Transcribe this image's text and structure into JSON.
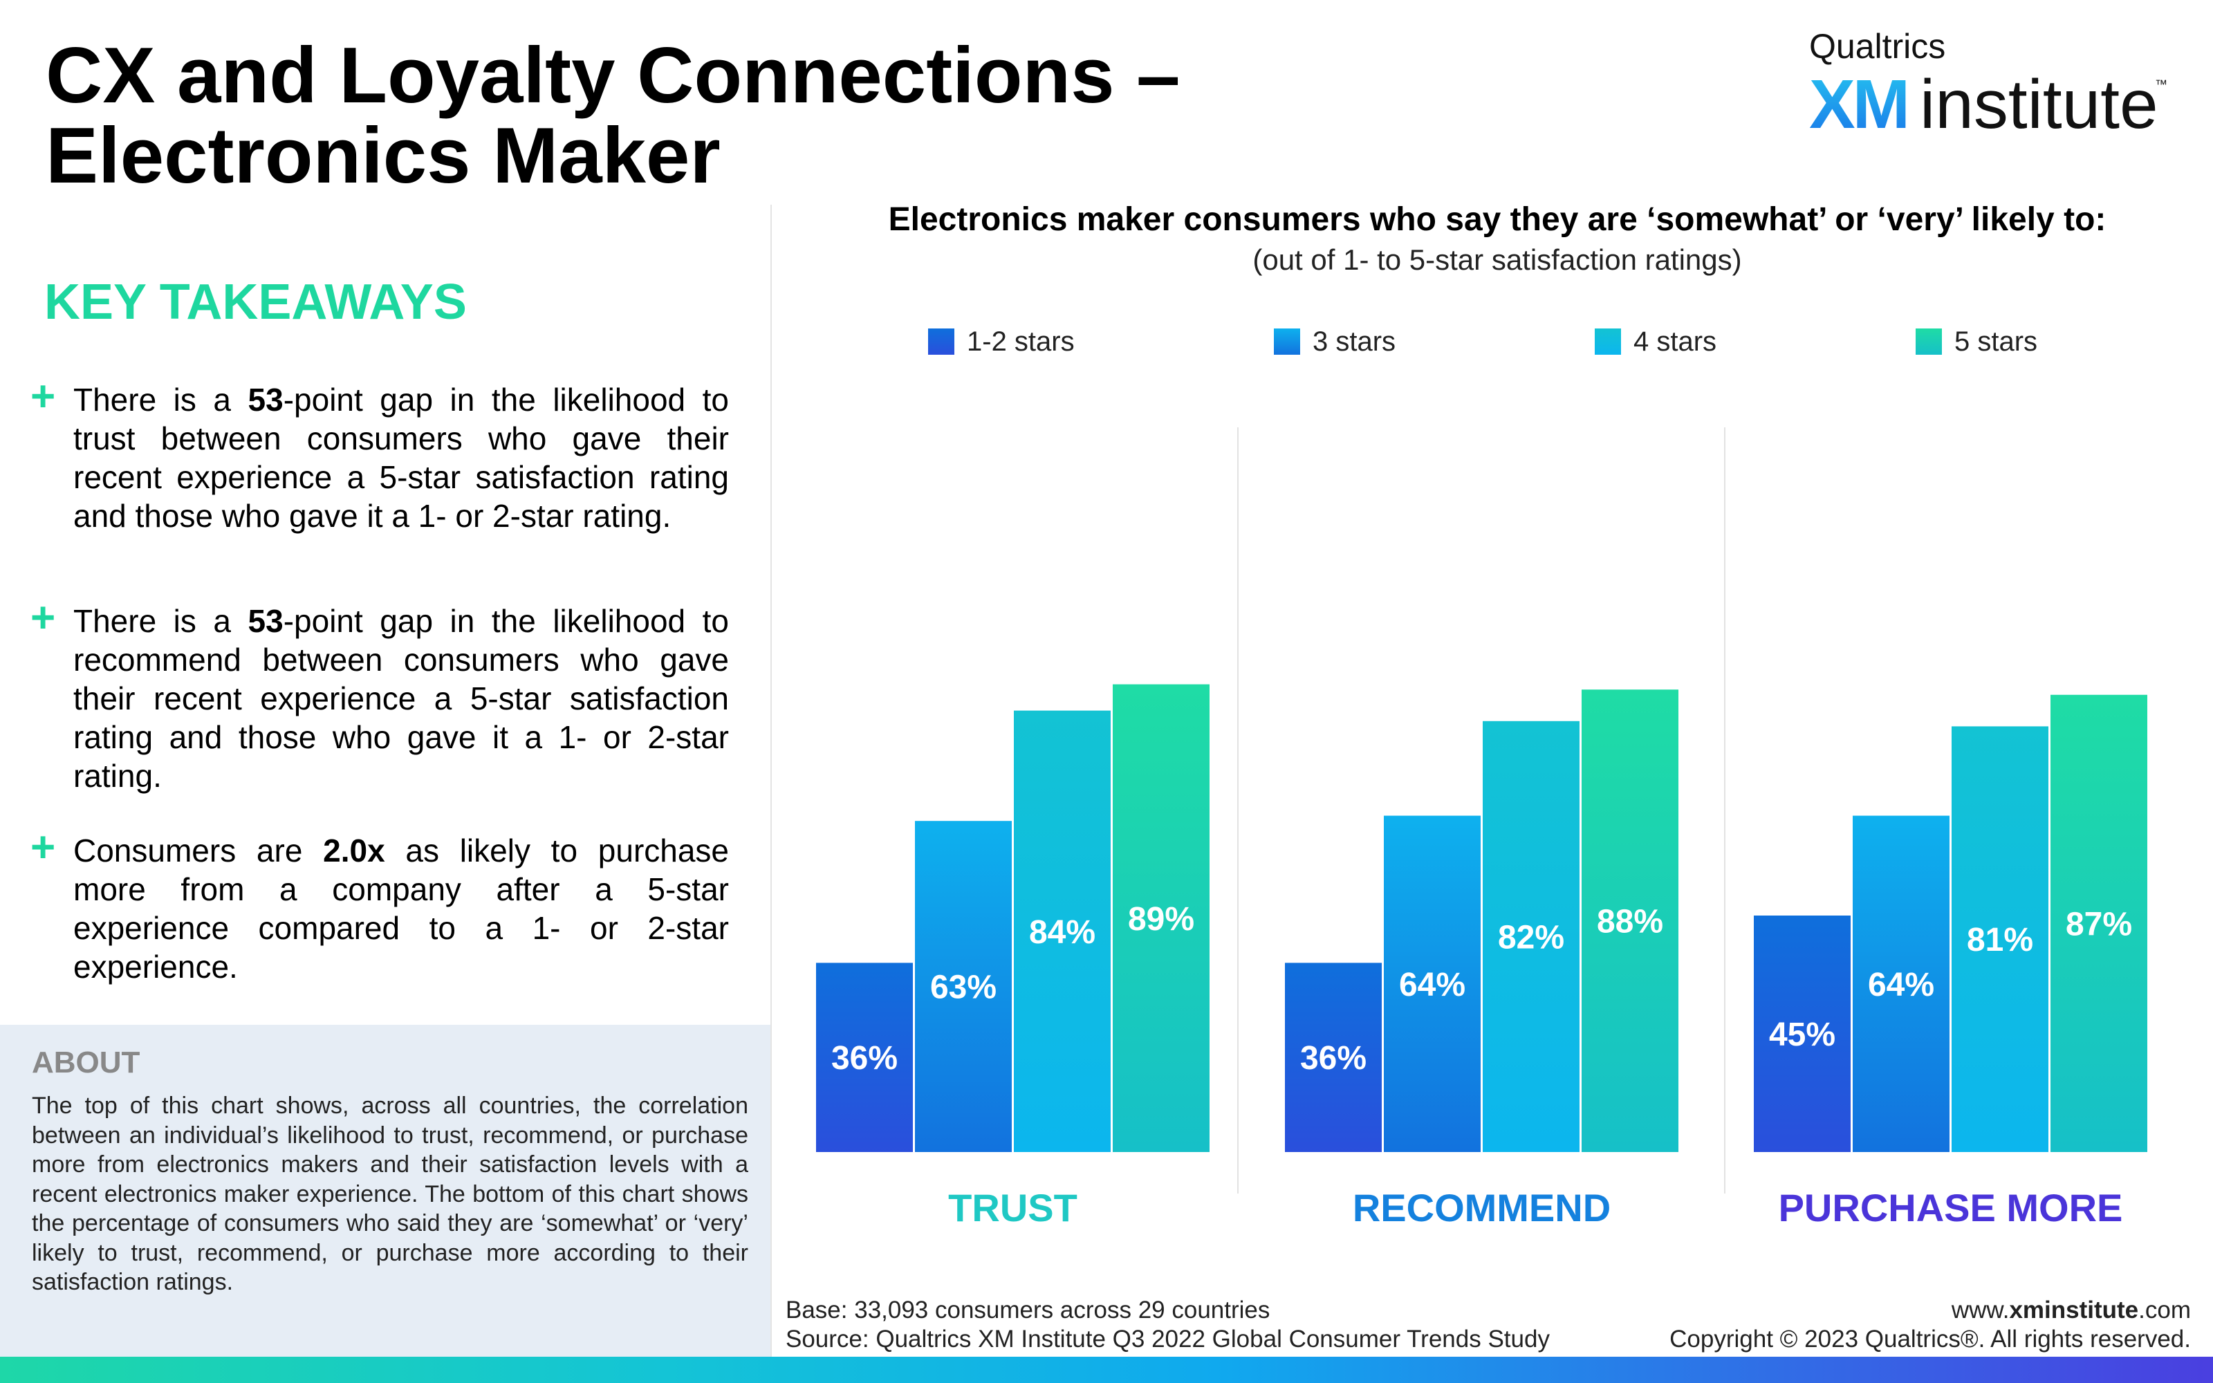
{
  "page": {
    "title_line1": "CX and Loyalty Connections –",
    "title_line2": "Electronics Maker"
  },
  "logo": {
    "brand": "Qualtrics",
    "xm": "XM",
    "institute": "institute",
    "tm": "™"
  },
  "takeaways": {
    "heading": "KEY TAKEAWAYS",
    "items": [
      {
        "pre": "There is a ",
        "bold": "53",
        "post": "-point gap in the likelihood to trust between consumers who gave their recent experience a 5-star satisfaction rating and those who gave it a 1- or 2-star rating."
      },
      {
        "pre": "There is a ",
        "bold": "53",
        "post": "-point gap in the likelihood to recommend between consumers who gave their recent experience a 5-star satisfaction rating and those who gave it a 1- or 2-star rating."
      },
      {
        "pre": "Consumers are ",
        "bold": "2.0x",
        "post": " as likely to purchase more from a company after a 5-star experience compared to a 1- or 2-star experience."
      }
    ]
  },
  "about": {
    "title": "ABOUT",
    "text": "The top of this chart shows, across all countries, the correlation between an individual’s likelihood to trust, recommend, or purchase more from electronics makers and their satisfaction levels with a recent electronics maker experience. The bottom of this chart shows the percentage of consumers who said they are ‘somewhat’ or ‘very’ likely to trust, recommend, or purchase more according to their satisfaction ratings."
  },
  "chart_data": {
    "type": "bar",
    "title": "Electronics maker consumers who say they are ‘somewhat’ or ‘very’ likely to:",
    "subtitle": "(out of 1- to 5-star satisfaction ratings)",
    "categories": [
      "TRUST",
      "RECOMMEND",
      "PURCHASE MORE"
    ],
    "category_colors": [
      "#1fc8c4",
      "#1481de",
      "#4a34d9"
    ],
    "series": [
      {
        "name": "1-2 stars",
        "values": [
          36,
          36,
          45
        ],
        "color_top": "#0f6fdc",
        "color_bottom": "#2a4fdc"
      },
      {
        "name": "3 stars",
        "values": [
          63,
          64,
          64
        ],
        "color_top": "#0eb1ee",
        "color_bottom": "#1272de"
      },
      {
        "name": "4 stars",
        "values": [
          84,
          82,
          81
        ],
        "color_top": "#13c3d3",
        "color_bottom": "#0cb6ee"
      },
      {
        "name": "5 stars",
        "values": [
          89,
          88,
          87
        ],
        "color_top": "#1fdca5",
        "color_bottom": "#16c0c8"
      }
    ],
    "unit": "%",
    "ylim": [
      0,
      100
    ],
    "legend": "top",
    "grid": false
  },
  "footer": {
    "base": "Base: 33,093 consumers across 29 countries",
    "source": "Source: Qualtrics XM Institute Q3 2022 Global Consumer Trends Study",
    "url_pre": "www.",
    "url_bold": "xminstitute",
    "url_post": ".com",
    "copyright": "Copyright © 2023 Qualtrics®. All rights reserved."
  }
}
